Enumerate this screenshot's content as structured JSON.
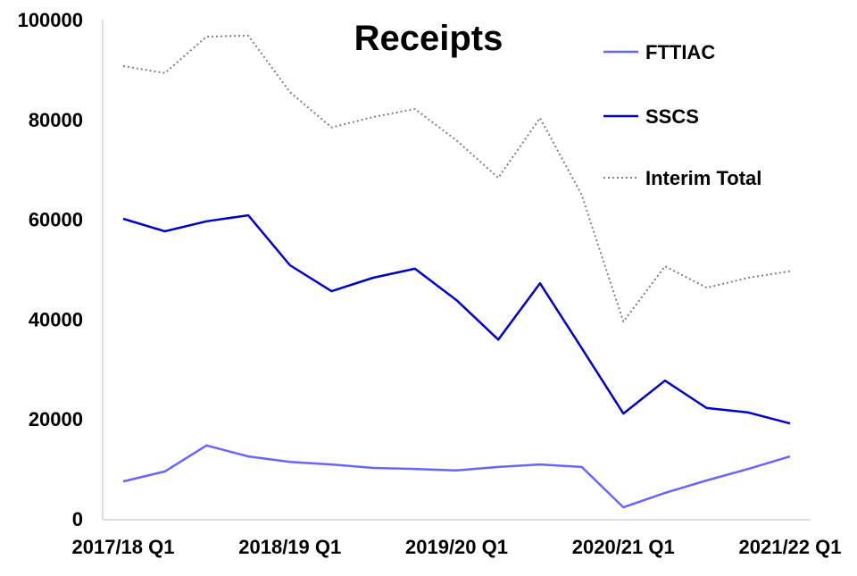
{
  "chart_data": {
    "type": "line",
    "title": "Receipts",
    "xlabel": "",
    "ylabel": "",
    "ylim": [
      0,
      100000
    ],
    "yticks": [
      "0",
      "20000",
      "40000",
      "60000",
      "80000",
      "100000"
    ],
    "ytick_values": [
      0,
      20000,
      40000,
      60000,
      80000,
      100000
    ],
    "x": [
      "2017/18 Q1",
      "2017/18 Q2",
      "2017/18 Q3",
      "2017/18 Q4",
      "2018/19 Q1",
      "2018/19 Q2",
      "2018/19 Q3",
      "2018/19 Q4",
      "2019/20 Q1",
      "2019/20 Q2",
      "2019/20 Q3",
      "2019/20 Q4",
      "2020/21 Q1",
      "2020/21 Q2",
      "2020/21 Q3",
      "2020/21 Q4",
      "2021/22 Q1"
    ],
    "xtick_labels": [
      "2017/18 Q1",
      "2018/19 Q1",
      "2019/20 Q1",
      "2020/21 Q1",
      "2021/22 Q1"
    ],
    "xtick_indices": [
      0,
      4,
      8,
      12,
      16
    ],
    "grid": false,
    "legend_position": "top-right",
    "series": [
      {
        "name": "FTTIAC",
        "color": "#6666FF",
        "style": "solid",
        "values": [
          7500,
          9500,
          14700,
          12500,
          11400,
          10900,
          10200,
          10000,
          9700,
          10400,
          10900,
          10400,
          2300,
          5200,
          7700,
          10000,
          12500
        ]
      },
      {
        "name": "SSCS",
        "color": "#0000CC",
        "style": "solid",
        "values": [
          60100,
          57600,
          59600,
          60800,
          50800,
          45600,
          48300,
          50100,
          43800,
          35900,
          47200,
          34200,
          21100,
          27700,
          22200,
          21300,
          19100
        ]
      },
      {
        "name": "Interim Total",
        "color": "#808080",
        "style": "dotted",
        "values": [
          90700,
          89300,
          96600,
          96800,
          85500,
          78400,
          80500,
          82100,
          75800,
          68300,
          80300,
          64900,
          39500,
          50600,
          46300,
          48300,
          49600
        ]
      }
    ]
  }
}
